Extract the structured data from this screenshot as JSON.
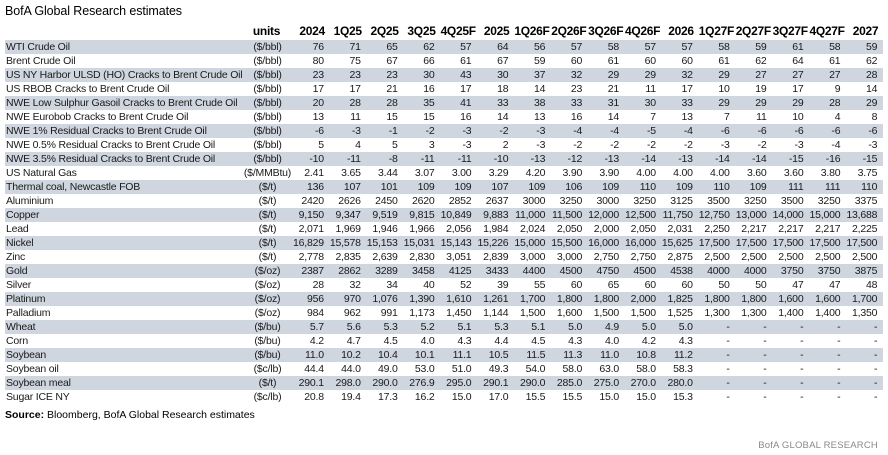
{
  "title": "BofA Global Research estimates",
  "source": {
    "label": "Source:",
    "text": " Bloomberg, BofA Global Research estimates"
  },
  "brand": "BofA GLOBAL RESEARCH",
  "colors": {
    "stripe": "#cfd6df",
    "brand_gray": "#8a8a8a"
  },
  "table": {
    "unit_header": "units",
    "period_headers": [
      "2024",
      "1Q25",
      "2Q25",
      "3Q25",
      "4Q25F",
      "2025",
      "1Q26F",
      "2Q26F",
      "3Q26F",
      "4Q26F",
      "2026",
      "1Q27F",
      "2Q27F",
      "3Q27F",
      "4Q27F",
      "2027"
    ],
    "rows": [
      {
        "label": "WTI Crude Oil",
        "units": "($/bbl)",
        "values": [
          "76",
          "71",
          "65",
          "62",
          "57",
          "64",
          "56",
          "57",
          "58",
          "57",
          "57",
          "58",
          "59",
          "61",
          "58",
          "59"
        ]
      },
      {
        "label": "Brent Crude Oil",
        "units": "($/bbl)",
        "values": [
          "80",
          "75",
          "67",
          "66",
          "61",
          "67",
          "59",
          "60",
          "61",
          "60",
          "60",
          "61",
          "62",
          "64",
          "61",
          "62"
        ]
      },
      {
        "label": "US NY Harbor ULSD (HO) Cracks to Brent Crude Oil",
        "units": "($/bbl)",
        "values": [
          "23",
          "23",
          "23",
          "30",
          "43",
          "30",
          "37",
          "32",
          "29",
          "29",
          "32",
          "29",
          "27",
          "27",
          "27",
          "28"
        ]
      },
      {
        "label": "US RBOB Cracks to Brent Crude Oil",
        "units": "($/bbl)",
        "values": [
          "17",
          "17",
          "21",
          "16",
          "17",
          "18",
          "14",
          "23",
          "21",
          "11",
          "17",
          "10",
          "19",
          "17",
          "9",
          "14"
        ]
      },
      {
        "label": "NWE Low Sulphur Gasoil Cracks to Brent Crude Oil",
        "units": "($/bbl)",
        "values": [
          "20",
          "28",
          "28",
          "35",
          "41",
          "33",
          "38",
          "33",
          "31",
          "30",
          "33",
          "29",
          "29",
          "29",
          "28",
          "29"
        ]
      },
      {
        "label": "NWE Eurobob Cracks to Brent Crude Oil",
        "units": "($/bbl)",
        "values": [
          "13",
          "11",
          "15",
          "15",
          "16",
          "14",
          "13",
          "16",
          "14",
          "7",
          "13",
          "7",
          "11",
          "10",
          "4",
          "8"
        ]
      },
      {
        "label": "NWE 1% Residual Cracks to Brent Crude Oil",
        "units": "($/bbl)",
        "values": [
          "-6",
          "-3",
          "-1",
          "-2",
          "-3",
          "-2",
          "-3",
          "-4",
          "-4",
          "-5",
          "-4",
          "-6",
          "-6",
          "-6",
          "-6",
          "-6"
        ]
      },
      {
        "label": "NWE 0.5% Residual Cracks to Brent Crude Oil",
        "units": "($/bbl)",
        "values": [
          "5",
          "4",
          "5",
          "3",
          "-3",
          "2",
          "-3",
          "-2",
          "-2",
          "-2",
          "-2",
          "-3",
          "-2",
          "-3",
          "-4",
          "-3"
        ]
      },
      {
        "label": "NWE 3.5% Residual Cracks to Brent Crude Oil",
        "units": "($/bbl)",
        "values": [
          "-10",
          "-11",
          "-8",
          "-11",
          "-11",
          "-10",
          "-13",
          "-12",
          "-13",
          "-14",
          "-13",
          "-14",
          "-14",
          "-15",
          "-16",
          "-15"
        ]
      },
      {
        "label": "US Natural Gas",
        "units": "($/MMBtu)",
        "values": [
          "2.41",
          "3.65",
          "3.44",
          "3.07",
          "3.00",
          "3.29",
          "4.20",
          "3.90",
          "3.90",
          "4.00",
          "4.00",
          "4.00",
          "3.60",
          "3.60",
          "3.80",
          "3.75"
        ]
      },
      {
        "label": "Thermal coal, Newcastle FOB",
        "units": "($/t)",
        "values": [
          "136",
          "107",
          "101",
          "109",
          "109",
          "107",
          "109",
          "106",
          "109",
          "110",
          "109",
          "110",
          "109",
          "111",
          "111",
          "110"
        ]
      },
      {
        "label": "Aluminium",
        "units": "($/t)",
        "values": [
          "2420",
          "2626",
          "2450",
          "2620",
          "2852",
          "2637",
          "3000",
          "3250",
          "3000",
          "3250",
          "3125",
          "3500",
          "3250",
          "3500",
          "3250",
          "3375"
        ]
      },
      {
        "label": "Copper",
        "units": "($/t)",
        "values": [
          "9,150",
          "9,347",
          "9,519",
          "9,815",
          "10,849",
          "9,883",
          "11,000",
          "11,500",
          "12,000",
          "12,500",
          "11,750",
          "12,750",
          "13,000",
          "14,000",
          "15,000",
          "13,688"
        ]
      },
      {
        "label": "Lead",
        "units": "($/t)",
        "values": [
          "2,071",
          "1,969",
          "1,946",
          "1,966",
          "2,056",
          "1,984",
          "2,024",
          "2,050",
          "2,000",
          "2,050",
          "2,031",
          "2,250",
          "2,217",
          "2,217",
          "2,217",
          "2,225"
        ]
      },
      {
        "label": "Nickel",
        "units": "($/t)",
        "values": [
          "16,829",
          "15,578",
          "15,153",
          "15,031",
          "15,143",
          "15,226",
          "15,000",
          "15,500",
          "16,000",
          "16,000",
          "15,625",
          "17,500",
          "17,500",
          "17,500",
          "17,500",
          "17,500"
        ]
      },
      {
        "label": "Zinc",
        "units": "($/t)",
        "values": [
          "2,778",
          "2,835",
          "2,639",
          "2,830",
          "3,051",
          "2,839",
          "3,000",
          "3,000",
          "2,750",
          "2,750",
          "2,875",
          "2,500",
          "2,500",
          "2,500",
          "2,500",
          "2,500"
        ]
      },
      {
        "label": "Gold",
        "units": "($/oz)",
        "values": [
          "2387",
          "2862",
          "3289",
          "3458",
          "4125",
          "3433",
          "4400",
          "4500",
          "4750",
          "4500",
          "4538",
          "4000",
          "4000",
          "3750",
          "3750",
          "3875"
        ]
      },
      {
        "label": "Silver",
        "units": "($/oz)",
        "values": [
          "28",
          "32",
          "34",
          "40",
          "52",
          "39",
          "55",
          "60",
          "65",
          "60",
          "60",
          "50",
          "50",
          "47",
          "47",
          "48"
        ]
      },
      {
        "label": "Platinum",
        "units": "($/oz)",
        "values": [
          "956",
          "970",
          "1,076",
          "1,390",
          "1,610",
          "1,261",
          "1,700",
          "1,800",
          "1,800",
          "2,000",
          "1,825",
          "1,800",
          "1,800",
          "1,600",
          "1,600",
          "1,700"
        ]
      },
      {
        "label": "Palladium",
        "units": "($/oz)",
        "values": [
          "984",
          "962",
          "991",
          "1,173",
          "1,450",
          "1,144",
          "1,500",
          "1,600",
          "1,500",
          "1,500",
          "1,525",
          "1,300",
          "1,300",
          "1,400",
          "1,400",
          "1,350"
        ]
      },
      {
        "label": "Wheat",
        "units": "($/bu)",
        "values": [
          "5.7",
          "5.6",
          "5.3",
          "5.2",
          "5.1",
          "5.3",
          "5.1",
          "5.0",
          "4.9",
          "5.0",
          "5.0",
          "-",
          "-",
          "-",
          "-",
          "-"
        ]
      },
      {
        "label": "Corn",
        "units": "($/bu)",
        "values": [
          "4.2",
          "4.7",
          "4.5",
          "4.0",
          "4.3",
          "4.4",
          "4.5",
          "4.3",
          "4.0",
          "4.2",
          "4.3",
          "-",
          "-",
          "-",
          "-",
          "-"
        ]
      },
      {
        "label": "Soybean",
        "units": "($/bu)",
        "values": [
          "11.0",
          "10.2",
          "10.4",
          "10.1",
          "11.1",
          "10.5",
          "11.5",
          "11.3",
          "11.0",
          "10.8",
          "11.2",
          "-",
          "-",
          "-",
          "-",
          "-"
        ]
      },
      {
        "label": "Soybean oil",
        "units": "($c/lb)",
        "values": [
          "44.4",
          "44.0",
          "49.0",
          "53.0",
          "51.0",
          "49.3",
          "54.0",
          "58.0",
          "63.0",
          "58.0",
          "58.3",
          "-",
          "-",
          "-",
          "-",
          "-"
        ]
      },
      {
        "label": "Soybean meal",
        "units": "($/t)",
        "values": [
          "290.1",
          "298.0",
          "290.0",
          "276.9",
          "295.0",
          "290.1",
          "290.0",
          "285.0",
          "275.0",
          "270.0",
          "280.0",
          "-",
          "-",
          "-",
          "-",
          "-"
        ]
      },
      {
        "label": "Sugar ICE NY",
        "units": "($c/lb)",
        "values": [
          "20.8",
          "19.4",
          "17.3",
          "16.2",
          "15.0",
          "17.0",
          "15.5",
          "15.5",
          "15.0",
          "15.0",
          "15.3",
          "-",
          "-",
          "-",
          "-",
          "-"
        ]
      }
    ]
  }
}
